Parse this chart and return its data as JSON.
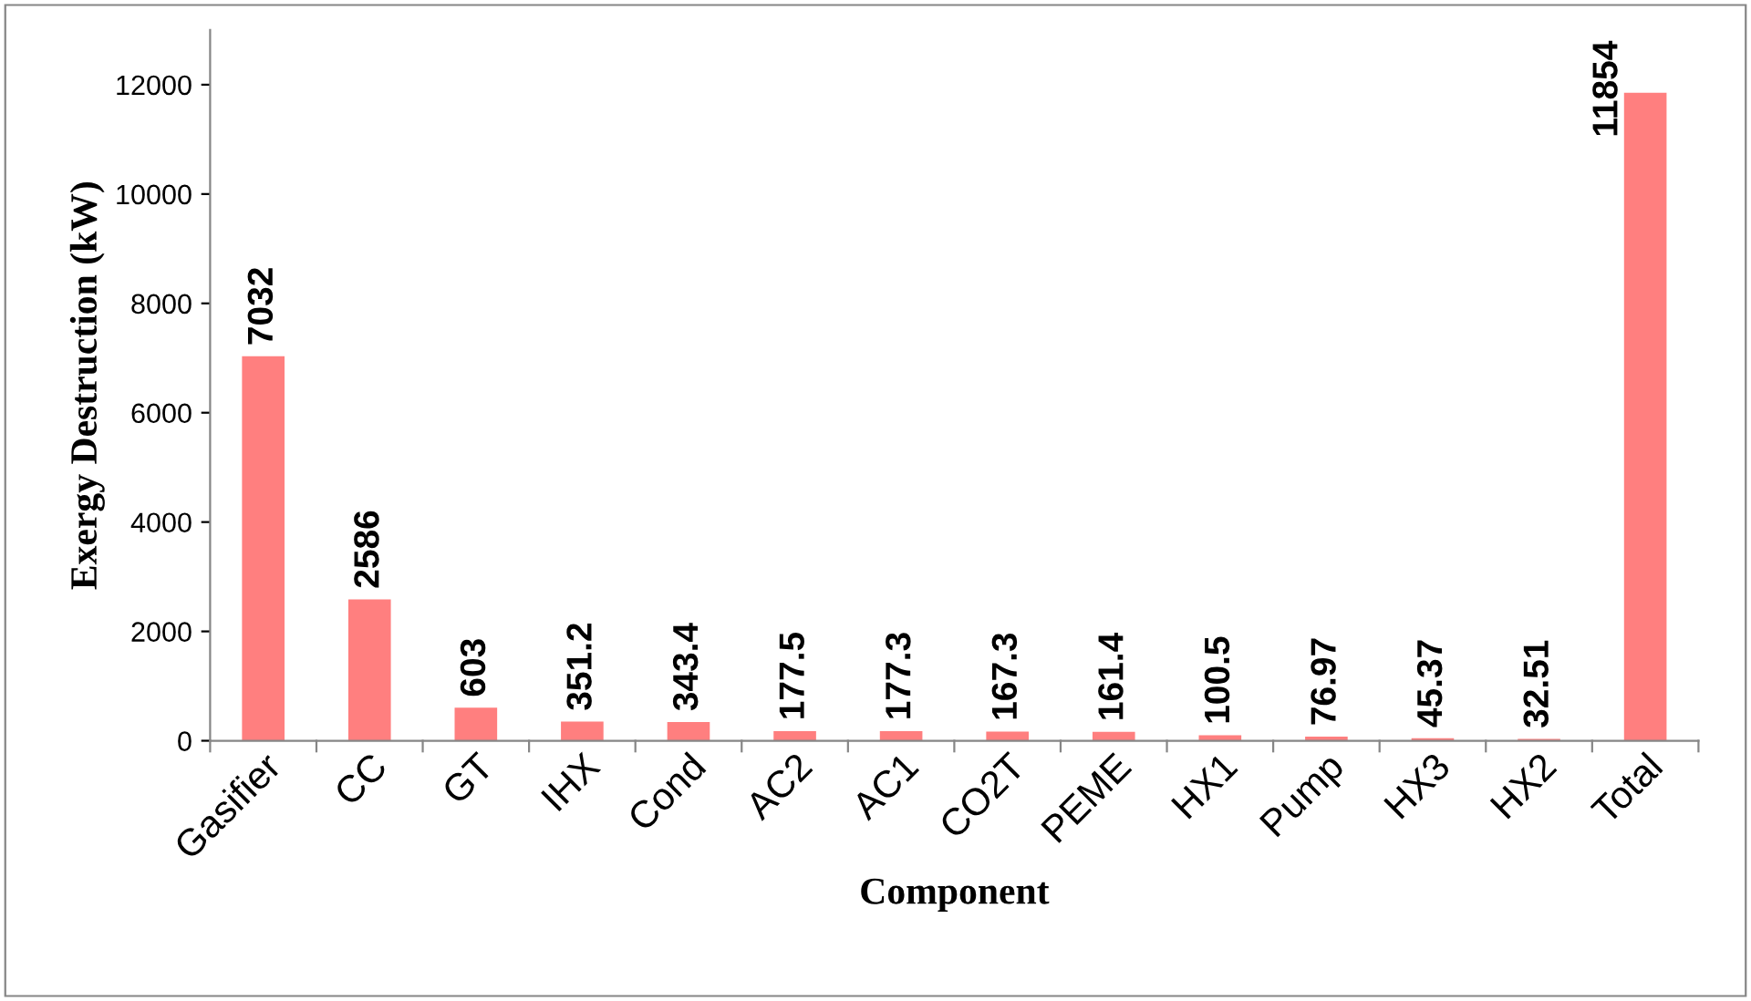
{
  "chart_data": {
    "type": "bar",
    "xlabel": "Component",
    "ylabel": "Exergy Destruction (kW)",
    "categories": [
      "Gasifier",
      "CC",
      "GT",
      "IHX",
      "Cond",
      "AC2",
      "AC1",
      "CO2T",
      "PEME",
      "HX1",
      "Pump",
      "HX3",
      "HX2",
      "Total"
    ],
    "values": [
      7032,
      2586,
      603,
      351.2,
      343.4,
      177.5,
      177.3,
      167.3,
      161.4,
      100.5,
      76.97,
      45.37,
      32.51,
      11854
    ],
    "color": "#ff7f7f",
    "ylim": [
      0,
      13000
    ],
    "yticks": [
      0,
      2000,
      4000,
      6000,
      8000,
      10000,
      12000
    ],
    "grid": false,
    "legend": false,
    "data_labels": true
  }
}
